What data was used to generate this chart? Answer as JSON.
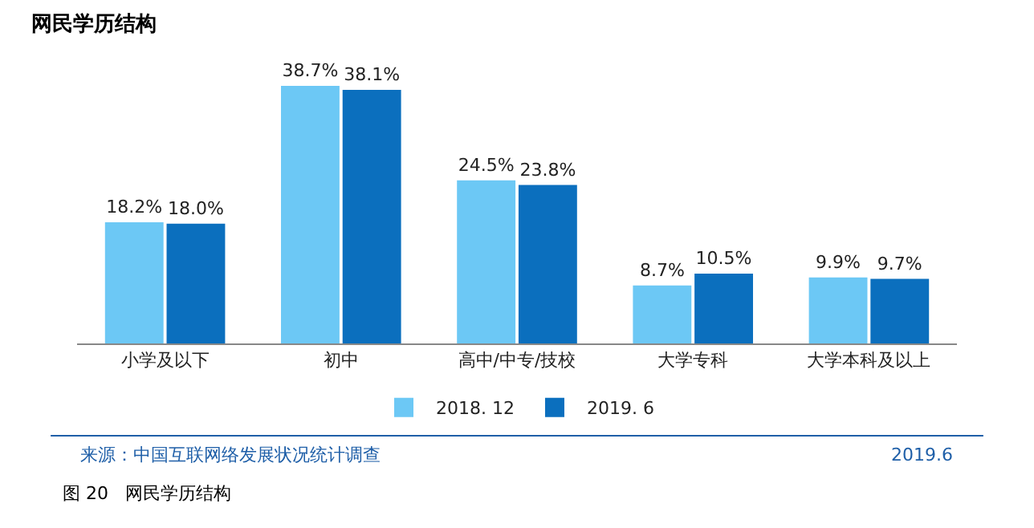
{
  "chart_data": {
    "type": "bar",
    "title": "网民学历结构",
    "categories": [
      "小学及以下",
      "初中",
      "高中/中专/技校",
      "大学专科",
      "大学本科及以上"
    ],
    "series": [
      {
        "name": "2018. 12",
        "color": "#6cc8f5",
        "values": [
          18.2,
          38.7,
          24.5,
          8.7,
          9.9
        ],
        "value_labels": [
          "18.2%",
          "38.7%",
          "24.5%",
          "8.7%",
          "9.9%"
        ]
      },
      {
        "name": "2019. 6",
        "color": "#0b6fbe",
        "values": [
          18.0,
          38.1,
          23.8,
          10.5,
          9.7
        ],
        "value_labels": [
          "18.0%",
          "38.1%",
          "23.8%",
          "10.5%",
          "9.7%"
        ]
      }
    ],
    "legend": "bottom",
    "grid": false,
    "annotations": [
      "来源：中国互联网络发展状况统计调查",
      "2019.6",
      "图 20   网民学历结构"
    ]
  }
}
